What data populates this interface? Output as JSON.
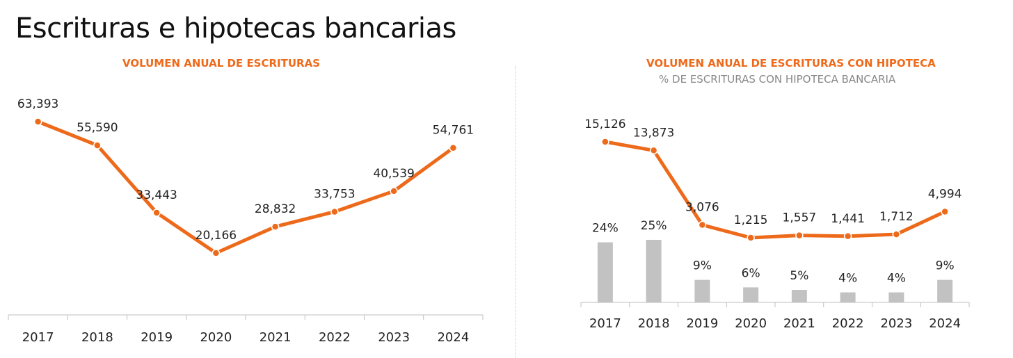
{
  "page_title": "Escrituras e hipotecas bancarias",
  "colors": {
    "line": "#ee6a1b",
    "bar": "#c2c2c2",
    "axis": "#bfbfbf",
    "text": "#222222"
  },
  "chart_data": [
    {
      "type": "line",
      "title": "VOLUMEN ANUAL DE ESCRITURAS",
      "categories": [
        "2017",
        "2018",
        "2019",
        "2020",
        "2021",
        "2022",
        "2023",
        "2024"
      ],
      "series": [
        {
          "values": [
            63393,
            55590,
            33443,
            20166,
            28832,
            33753,
            40539,
            54761
          ],
          "labels": [
            "63,393",
            "55,590",
            "33,443",
            "20,166",
            "28,832",
            "33,753",
            "40,539",
            "54,761"
          ]
        }
      ]
    },
    {
      "type": "bar",
      "title": "VOLUMEN ANUAL DE ESCRITURAS CON HIPOTECA",
      "subtitle": "% DE ESCRITURAS CON HIPOTECA BANCARIA",
      "categories": [
        "2017",
        "2018",
        "2019",
        "2020",
        "2021",
        "2022",
        "2023",
        "2024"
      ],
      "series": [
        {
          "type": "line",
          "values": [
            15126,
            13873,
            3076,
            1215,
            1557,
            1441,
            1712,
            4994
          ],
          "labels": [
            "15,126",
            "13,873",
            "3,076",
            "1,215",
            "1,557",
            "1,441",
            "1,712",
            "4,994"
          ]
        },
        {
          "type": "bar",
          "values": [
            24,
            25,
            9,
            6,
            5,
            4,
            4,
            9
          ],
          "labels": [
            "24%",
            "25%",
            "9%",
            "6%",
            "5%",
            "4%",
            "4%",
            "9%"
          ]
        }
      ]
    }
  ]
}
